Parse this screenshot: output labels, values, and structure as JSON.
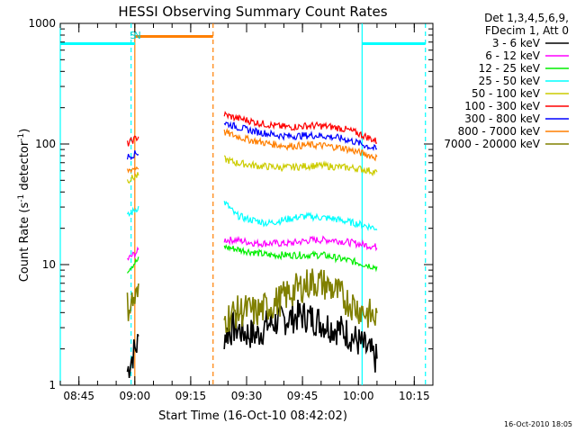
{
  "chart_data": {
    "type": "line",
    "title": "HESSI Observing Summary Count Rates",
    "xlabel": "Start Time (16-Oct-10 08:42:02)",
    "ylabel": "Count Rate (s⁻¹ detector⁻¹)",
    "ylabel_main": "Count Rate (s",
    "ylabel_mid": " detector",
    "ylabel_end": ")",
    "ylabel_sup": "-1",
    "y_scale": "log",
    "ylim": [
      1,
      1000
    ],
    "xlim": [
      "08:40",
      "10:20"
    ],
    "x_ticks": [
      "08:45",
      "09:00",
      "09:15",
      "09:30",
      "09:45",
      "10:00",
      "10:15"
    ],
    "y_ticks": [
      "1",
      "10",
      "100",
      "1000"
    ],
    "timestamp": "16-Oct-2010 18:05",
    "legend": {
      "header": [
        "Det 1,3,4,5,6,9,",
        "FDecim 1, Att 0"
      ],
      "entries": [
        {
          "label": "3 - 6 keV",
          "color": "#000000"
        },
        {
          "label": "6 - 12 keV",
          "color": "#ff00ff"
        },
        {
          "label": "12 - 25 keV",
          "color": "#00ee00"
        },
        {
          "label": "25 - 50 keV",
          "color": "#00ffff"
        },
        {
          "label": "50 - 100 keV",
          "color": "#cccc00"
        },
        {
          "label": "100 - 300 keV",
          "color": "#ff0000"
        },
        {
          "label": "300 - 800 keV",
          "color": "#0000ff"
        },
        {
          "label": "800 - 7000 keV",
          "color": "#ff7f00"
        },
        {
          "label": "7000 - 20000 keV",
          "color": "#808000"
        }
      ]
    },
    "flags": [
      {
        "label": "S",
        "time": "08:59:30",
        "color": "#00cccc"
      },
      {
        "label": "N",
        "time": "09:00:40",
        "color": "#00cccc"
      }
    ],
    "state_bars": [
      {
        "name": "night",
        "from": "08:40",
        "to": "09:00",
        "y": 680,
        "color": "#00ffff"
      },
      {
        "name": "saa",
        "from": "09:00",
        "to": "09:21",
        "y": 780,
        "color": "#ff7f00"
      },
      {
        "name": "night",
        "from": "10:01",
        "to": "10:18",
        "y": 680,
        "color": "#00ffff"
      }
    ],
    "vertical_markers": [
      {
        "time": "08:40",
        "style": "solid",
        "color": "#00ffff"
      },
      {
        "time": "08:59",
        "style": "dashed",
        "color": "#00ffff"
      },
      {
        "time": "09:00",
        "style": "solid",
        "color": "#ff7f00"
      },
      {
        "time": "09:21",
        "style": "dashed",
        "color": "#ff7f00"
      },
      {
        "time": "10:01",
        "style": "solid",
        "color": "#00ffff"
      },
      {
        "time": "10:18",
        "style": "dashed",
        "color": "#00ffff"
      }
    ],
    "segments": [
      {
        "from": "08:58",
        "to": "09:01"
      },
      {
        "from": "09:24",
        "to": "10:05"
      }
    ],
    "series": [
      {
        "color": "#000000",
        "segment_values": [
          [
            1.3,
            2.3
          ],
          [
            2.6,
            3.0,
            2.7,
            2.6,
            3.2,
            3.4,
            3.6,
            3.8,
            3.6,
            3.3,
            3.0,
            2.8,
            2.4,
            2.0,
            1.6
          ]
        ]
      },
      {
        "color": "#ff00ff",
        "segment_values": [
          [
            11,
            13
          ],
          [
            16,
            16,
            15.5,
            15,
            15,
            15,
            15,
            15.5,
            16,
            16,
            16,
            15.5,
            15,
            14.5,
            14
          ]
        ]
      },
      {
        "color": "#00ee00",
        "segment_values": [
          [
            9,
            11
          ],
          [
            14,
            13.5,
            13,
            12.5,
            12,
            12,
            12,
            12,
            12,
            12,
            11.5,
            11,
            10.5,
            10,
            9.5
          ]
        ]
      },
      {
        "color": "#00ffff",
        "segment_values": [
          [
            25,
            30
          ],
          [
            33,
            26,
            24,
            23,
            22,
            23,
            24,
            25,
            25,
            24.5,
            24,
            23,
            22,
            21,
            20
          ]
        ]
      },
      {
        "color": "#cccc00",
        "segment_values": [
          [
            50,
            55
          ],
          [
            75,
            70,
            68,
            66,
            65,
            64,
            64,
            65,
            66,
            66,
            65,
            64,
            63,
            61,
            58
          ]
        ]
      },
      {
        "color": "#ff0000",
        "segment_values": [
          [
            100,
            115
          ],
          [
            175,
            165,
            158,
            150,
            145,
            140,
            138,
            140,
            142,
            141,
            138,
            133,
            125,
            115,
            105
          ]
        ]
      },
      {
        "color": "#0000ff",
        "segment_values": [
          [
            78,
            85
          ],
          [
            150,
            140,
            132,
            126,
            122,
            118,
            116,
            117,
            118,
            117,
            114,
            110,
            104,
            97,
            90
          ]
        ]
      },
      {
        "color": "#ff7f00",
        "segment_values": [
          [
            60,
            65
          ],
          [
            125,
            117,
            110,
            105,
            101,
            98,
            96,
            97,
            98,
            97,
            95,
            92,
            87,
            82,
            77
          ]
        ]
      },
      {
        "color": "#808000",
        "segment_values": [
          [
            4.5,
            5.5
          ],
          [
            3.5,
            4.0,
            4.2,
            4.0,
            4.5,
            5.0,
            5.8,
            6.5,
            7.2,
            7.0,
            6.2,
            5.2,
            4.5,
            4.0,
            3.5
          ]
        ]
      }
    ]
  }
}
